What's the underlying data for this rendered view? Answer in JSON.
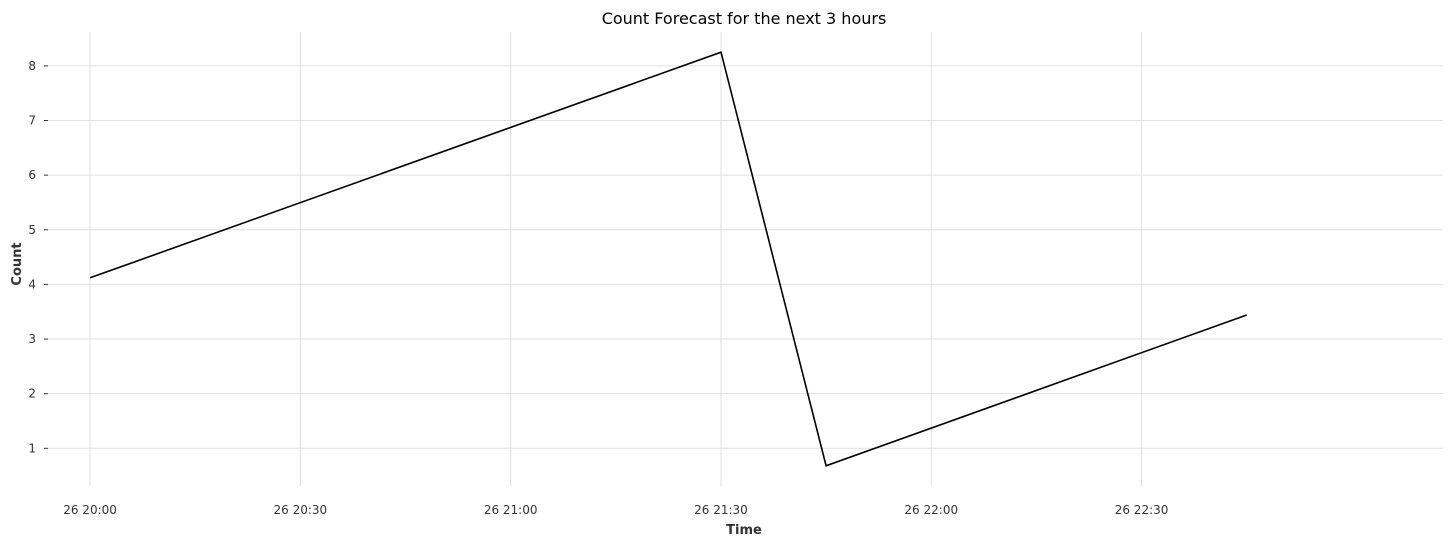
{
  "chart_data": {
    "type": "line",
    "title": "Count Forecast for the next 3 hours",
    "xlabel": "Time",
    "ylabel": "Count",
    "x_ticks": [
      "26 20:00",
      "26 20:30",
      "26 21:00",
      "26 21:30",
      "26 22:00",
      "26 22:30"
    ],
    "y_ticks": [
      1,
      2,
      3,
      4,
      5,
      6,
      7,
      8
    ],
    "series": [
      {
        "x": [
          "26 20:00",
          "26 21:30",
          "26 21:45",
          "26 22:45"
        ],
        "y": [
          4.12,
          8.25,
          0.68,
          3.44
        ],
        "color": "#000000"
      }
    ],
    "xlim": [
      "26 19:54",
      "26 23:13"
    ],
    "ylim": [
      0.31,
      8.62
    ],
    "grid": true,
    "legend": "none"
  }
}
